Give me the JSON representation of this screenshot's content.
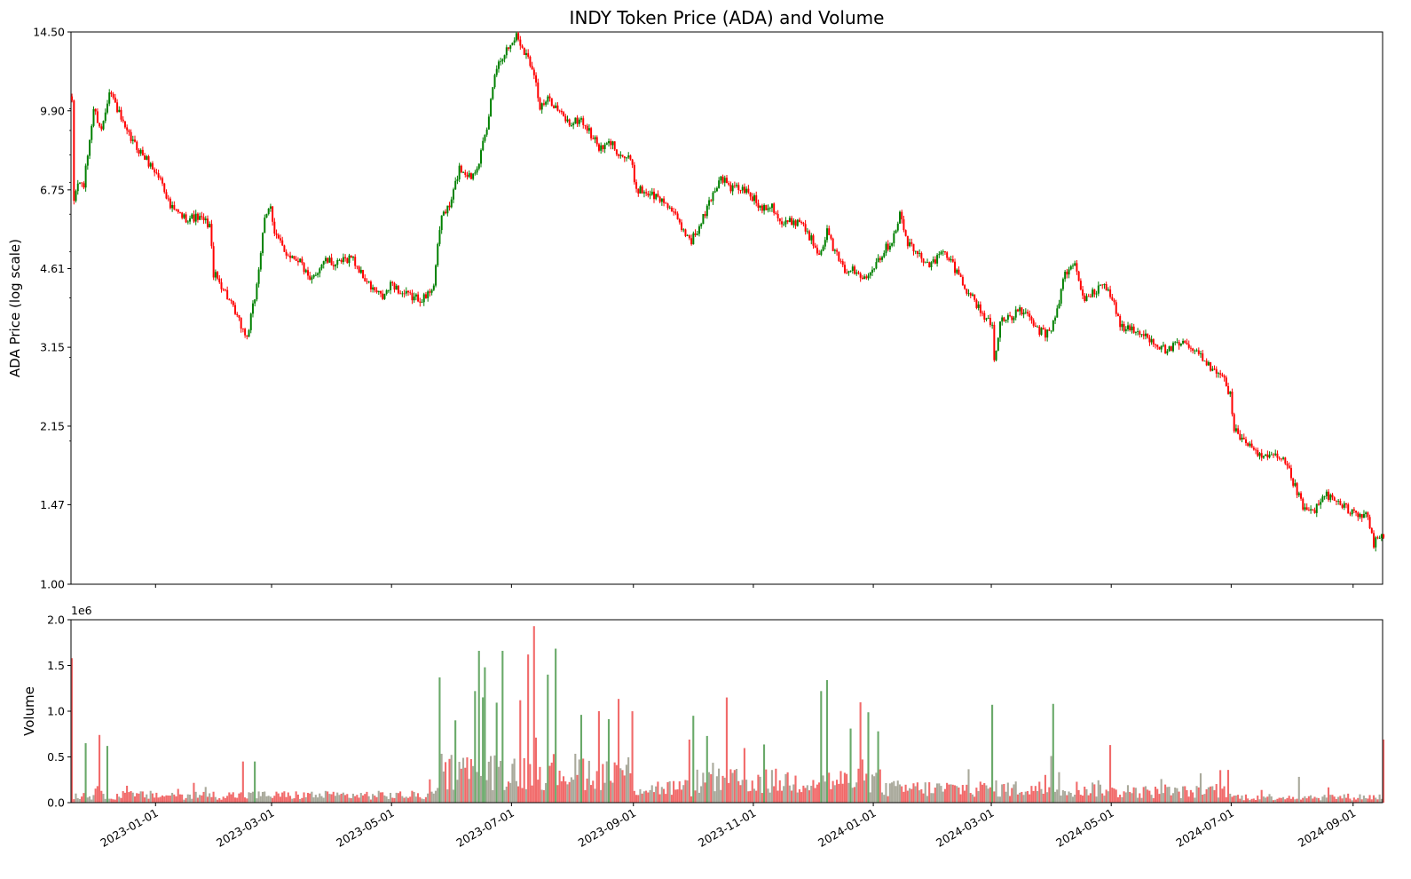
{
  "chart_data": [
    {
      "type": "candlestick",
      "title": "INDY Token Price (ADA) and Volume",
      "ylabel": "ADA Price (log scale)",
      "yscale": "log",
      "ylim": [
        1.0,
        14.5
      ],
      "yticks": [
        1.0,
        1.47,
        2.15,
        3.15,
        4.61,
        6.75,
        9.9,
        14.5
      ],
      "ytick_labels": [
        "1.00",
        "1.47",
        "2.15",
        "3.15",
        "4.61",
        "6.75",
        "9.90",
        "14.50"
      ],
      "xlim": [
        "2022-11-19",
        "2024-09-16"
      ],
      "colors": {
        "up": "#008000",
        "down": "#ff0000"
      },
      "price_path": [
        [
          "2022-11-19",
          10.2
        ],
        [
          "2022-11-20",
          6.4
        ],
        [
          "2022-11-22",
          7.0
        ],
        [
          "2022-11-25",
          6.9
        ],
        [
          "2022-11-27",
          8.0
        ],
        [
          "2022-11-30",
          10.0
        ],
        [
          "2022-12-04",
          9.0
        ],
        [
          "2022-12-08",
          11.0
        ],
        [
          "2022-12-12",
          10.0
        ],
        [
          "2022-12-16",
          9.0
        ],
        [
          "2022-12-20",
          8.5
        ],
        [
          "2022-12-25",
          8.0
        ],
        [
          "2022-12-30",
          7.5
        ],
        [
          "2023-01-04",
          7.0
        ],
        [
          "2023-01-08",
          6.2
        ],
        [
          "2023-01-15",
          5.9
        ],
        [
          "2023-01-22",
          5.9
        ],
        [
          "2023-01-28",
          5.7
        ],
        [
          "2023-01-30",
          4.5
        ],
        [
          "2023-02-04",
          4.2
        ],
        [
          "2023-02-10",
          3.7
        ],
        [
          "2023-02-16",
          3.3
        ],
        [
          "2023-02-20",
          4.0
        ],
        [
          "2023-02-25",
          5.8
        ],
        [
          "2023-02-28",
          6.3
        ],
        [
          "2023-03-02",
          5.5
        ],
        [
          "2023-03-07",
          5.0
        ],
        [
          "2023-03-15",
          4.8
        ],
        [
          "2023-03-20",
          4.3
        ],
        [
          "2023-03-27",
          4.8
        ],
        [
          "2023-04-03",
          4.7
        ],
        [
          "2023-04-10",
          4.9
        ],
        [
          "2023-04-15",
          4.5
        ],
        [
          "2023-04-20",
          4.2
        ],
        [
          "2023-04-26",
          4.0
        ],
        [
          "2023-05-01",
          4.3
        ],
        [
          "2023-05-05",
          4.1
        ],
        [
          "2023-05-12",
          4.0
        ],
        [
          "2023-05-18",
          4.0
        ],
        [
          "2023-05-22",
          4.3
        ],
        [
          "2023-05-26",
          6.0
        ],
        [
          "2023-05-30",
          6.2
        ],
        [
          "2023-06-04",
          7.5
        ],
        [
          "2023-06-10",
          7.2
        ],
        [
          "2023-06-14",
          7.8
        ],
        [
          "2023-06-18",
          9.0
        ],
        [
          "2023-06-22",
          12.0
        ],
        [
          "2023-06-26",
          13.0
        ],
        [
          "2023-06-30",
          13.6
        ],
        [
          "2023-07-03",
          14.3
        ],
        [
          "2023-07-08",
          13.0
        ],
        [
          "2023-07-12",
          12.0
        ],
        [
          "2023-07-15",
          10.0
        ],
        [
          "2023-07-20",
          10.5
        ],
        [
          "2023-07-25",
          9.8
        ],
        [
          "2023-07-30",
          9.3
        ],
        [
          "2023-08-05",
          9.5
        ],
        [
          "2023-08-10",
          8.8
        ],
        [
          "2023-08-15",
          8.2
        ],
        [
          "2023-08-20",
          8.5
        ],
        [
          "2023-08-25",
          8.0
        ],
        [
          "2023-08-30",
          7.8
        ],
        [
          "2023-09-02",
          6.8
        ],
        [
          "2023-09-10",
          6.6
        ],
        [
          "2023-09-18",
          6.3
        ],
        [
          "2023-09-25",
          5.6
        ],
        [
          "2023-09-30",
          5.3
        ],
        [
          "2023-10-04",
          5.6
        ],
        [
          "2023-10-10",
          6.5
        ],
        [
          "2023-10-15",
          7.2
        ],
        [
          "2023-10-20",
          6.8
        ],
        [
          "2023-10-25",
          6.8
        ],
        [
          "2023-10-30",
          6.6
        ],
        [
          "2023-11-04",
          6.2
        ],
        [
          "2023-11-10",
          6.3
        ],
        [
          "2023-11-15",
          5.7
        ],
        [
          "2023-11-20",
          5.8
        ],
        [
          "2023-11-25",
          5.8
        ],
        [
          "2023-11-30",
          5.3
        ],
        [
          "2023-12-04",
          5.0
        ],
        [
          "2023-12-08",
          5.5
        ],
        [
          "2023-12-12",
          5.0
        ],
        [
          "2023-12-16",
          4.6
        ],
        [
          "2023-12-20",
          4.6
        ],
        [
          "2023-12-26",
          4.4
        ],
        [
          "2023-12-30",
          4.6
        ],
        [
          "2024-01-04",
          4.9
        ],
        [
          "2024-01-10",
          5.3
        ],
        [
          "2024-01-14",
          6.0
        ],
        [
          "2024-01-18",
          5.2
        ],
        [
          "2024-01-24",
          4.9
        ],
        [
          "2024-01-30",
          4.7
        ],
        [
          "2024-02-05",
          5.0
        ],
        [
          "2024-02-10",
          4.7
        ],
        [
          "2024-02-15",
          4.3
        ],
        [
          "2024-02-20",
          4.0
        ],
        [
          "2024-02-25",
          3.7
        ],
        [
          "2024-03-01",
          3.5
        ],
        [
          "2024-03-02",
          2.95
        ],
        [
          "2024-03-05",
          3.6
        ],
        [
          "2024-03-10",
          3.6
        ],
        [
          "2024-03-15",
          3.8
        ],
        [
          "2024-03-20",
          3.6
        ],
        [
          "2024-03-25",
          3.4
        ],
        [
          "2024-03-30",
          3.35
        ],
        [
          "2024-04-03",
          3.8
        ],
        [
          "2024-04-07",
          4.5
        ],
        [
          "2024-04-12",
          4.7
        ],
        [
          "2024-04-16",
          4.0
        ],
        [
          "2024-04-22",
          4.1
        ],
        [
          "2024-04-27",
          4.3
        ],
        [
          "2024-05-01",
          4.0
        ],
        [
          "2024-05-05",
          3.5
        ],
        [
          "2024-05-12",
          3.4
        ],
        [
          "2024-05-20",
          3.3
        ],
        [
          "2024-05-28",
          3.1
        ],
        [
          "2024-06-05",
          3.2
        ],
        [
          "2024-06-12",
          3.1
        ],
        [
          "2024-06-18",
          2.9
        ],
        [
          "2024-06-25",
          2.8
        ],
        [
          "2024-06-30",
          2.5
        ],
        [
          "2024-07-02",
          2.1
        ],
        [
          "2024-07-08",
          2.0
        ],
        [
          "2024-07-14",
          1.85
        ],
        [
          "2024-07-22",
          1.85
        ],
        [
          "2024-07-28",
          1.8
        ],
        [
          "2024-08-02",
          1.6
        ],
        [
          "2024-08-07",
          1.42
        ],
        [
          "2024-08-12",
          1.43
        ],
        [
          "2024-08-18",
          1.55
        ],
        [
          "2024-08-24",
          1.47
        ],
        [
          "2024-09-01",
          1.42
        ],
        [
          "2024-09-08",
          1.38
        ],
        [
          "2024-09-11",
          1.2
        ],
        [
          "2024-09-12",
          1.25
        ],
        [
          "2024-09-16",
          1.26
        ]
      ]
    },
    {
      "type": "bar",
      "ylabel": "Volume",
      "scale_label": "1e6",
      "ylim": [
        0,
        2000000
      ],
      "yticks": [
        0,
        500000,
        1000000,
        1500000,
        2000000
      ],
      "ytick_labels": [
        "0.0",
        "0.5",
        "1.0",
        "1.5",
        "2.0"
      ],
      "xticks": [
        "2023-01-01",
        "2023-03-01",
        "2023-05-01",
        "2023-07-01",
        "2023-09-01",
        "2023-11-01",
        "2024-01-01",
        "2024-03-01",
        "2024-05-01",
        "2024-07-01",
        "2024-09-01"
      ],
      "colors": {
        "up": "#4f9a4f",
        "down": "#f05a5a",
        "mixed": "#9a9a8a"
      },
      "volume_spikes": [
        [
          "2022-11-19",
          1580000
        ],
        [
          "2022-11-26",
          650000
        ],
        [
          "2022-12-03",
          740000
        ],
        [
          "2022-12-07",
          620000
        ],
        [
          "2023-02-14",
          450000
        ],
        [
          "2023-02-20",
          450000
        ],
        [
          "2023-05-25",
          1370000
        ],
        [
          "2023-06-02",
          900000
        ],
        [
          "2023-06-12",
          1220000
        ],
        [
          "2023-06-14",
          1660000
        ],
        [
          "2023-06-17",
          1480000
        ],
        [
          "2023-06-26",
          1660000
        ],
        [
          "2023-07-05",
          1120000
        ],
        [
          "2023-07-09",
          1620000
        ],
        [
          "2023-07-12",
          1930000
        ],
        [
          "2023-07-19",
          1400000
        ],
        [
          "2023-08-05",
          960000
        ],
        [
          "2023-08-14",
          1000000
        ],
        [
          "2023-10-01",
          950000
        ],
        [
          "2023-10-18",
          1150000
        ],
        [
          "2023-12-05",
          1220000
        ],
        [
          "2023-12-08",
          1340000
        ],
        [
          "2023-12-20",
          810000
        ],
        [
          "2024-01-03",
          780000
        ],
        [
          "2024-03-01",
          1070000
        ],
        [
          "2024-04-01",
          1080000
        ],
        [
          "2024-04-30",
          630000
        ],
        [
          "2024-09-16",
          690000
        ]
      ]
    }
  ]
}
